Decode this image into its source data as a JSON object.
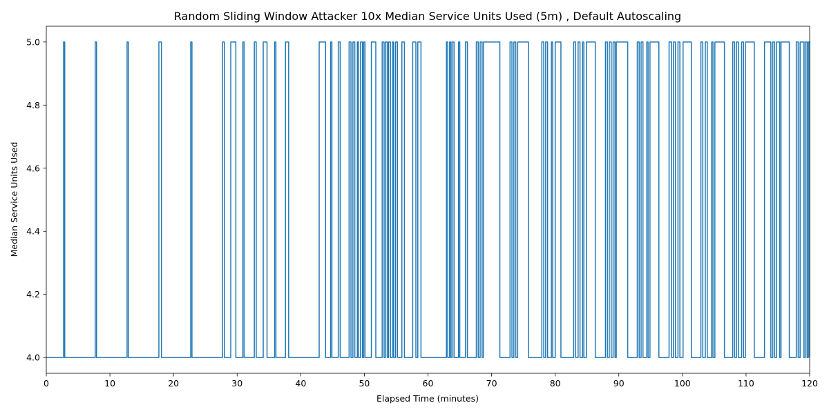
{
  "chart_data": {
    "type": "line",
    "title": "Random Sliding Window Attacker 10x Median Service Units Used (5m) , Default Autoscaling",
    "xlabel": "Elapsed Time (minutes)",
    "ylabel": "Median Service Units Used",
    "xlim": [
      0,
      120
    ],
    "ylim": [
      3.95,
      5.05
    ],
    "x_ticks": [
      0,
      10,
      20,
      30,
      40,
      50,
      60,
      70,
      80,
      90,
      100,
      110,
      120
    ],
    "x_tick_labels": [
      "0",
      "10",
      "20",
      "30",
      "40",
      "50",
      "60",
      "70",
      "80",
      "90",
      "100",
      "110",
      "120"
    ],
    "y_ticks": [
      4.0,
      4.2,
      4.4,
      4.6,
      4.8,
      5.0
    ],
    "y_tick_labels": [
      "4.0",
      "4.2",
      "4.4",
      "4.6",
      "4.8",
      "5.0"
    ],
    "grid": false,
    "legend": "none",
    "series": [
      {
        "color": "#1f77b4",
        "style": "step",
        "baseline": 4.0,
        "peak": 5.0,
        "x_start": 0,
        "x_end": 120,
        "high_intervals": [
          [
            2.7,
            2.9
          ],
          [
            7.7,
            7.9
          ],
          [
            12.7,
            12.9
          ],
          [
            17.7,
            18.1
          ],
          [
            22.7,
            22.9
          ],
          [
            27.7,
            28.0
          ],
          [
            29.0,
            29.8
          ],
          [
            30.9,
            31.1
          ],
          [
            32.7,
            33.0
          ],
          [
            34.1,
            34.7
          ],
          [
            35.9,
            36.1
          ],
          [
            37.6,
            38.1
          ],
          [
            42.9,
            43.9
          ],
          [
            44.7,
            44.9
          ],
          [
            45.9,
            46.2
          ],
          [
            47.6,
            47.9
          ],
          [
            48.2,
            48.5
          ],
          [
            48.9,
            49.1
          ],
          [
            49.4,
            49.7
          ],
          [
            49.9,
            50.1
          ],
          [
            51.1,
            51.8
          ],
          [
            52.8,
            53.1
          ],
          [
            53.3,
            53.6
          ],
          [
            53.8,
            54.1
          ],
          [
            54.4,
            54.6
          ],
          [
            54.9,
            55.2
          ],
          [
            55.9,
            56.3
          ],
          [
            57.6,
            58.1
          ],
          [
            58.4,
            58.9
          ],
          [
            62.9,
            63.1
          ],
          [
            63.4,
            63.6
          ],
          [
            63.8,
            64.1
          ],
          [
            64.8,
            65.0
          ],
          [
            65.9,
            66.2
          ],
          [
            67.6,
            67.9
          ],
          [
            68.2,
            68.5
          ],
          [
            68.7,
            71.3
          ],
          [
            72.9,
            73.2
          ],
          [
            73.5,
            73.8
          ],
          [
            74.1,
            75.8
          ],
          [
            77.9,
            78.2
          ],
          [
            78.5,
            78.8
          ],
          [
            79.4,
            79.6
          ],
          [
            80.0,
            80.9
          ],
          [
            82.9,
            83.2
          ],
          [
            83.6,
            83.9
          ],
          [
            84.3,
            84.5
          ],
          [
            84.9,
            86.3
          ],
          [
            87.9,
            88.2
          ],
          [
            88.5,
            88.8
          ],
          [
            89.1,
            89.4
          ],
          [
            89.6,
            91.4
          ],
          [
            92.9,
            93.2
          ],
          [
            93.5,
            93.8
          ],
          [
            94.4,
            94.6
          ],
          [
            94.9,
            96.3
          ],
          [
            97.9,
            98.3
          ],
          [
            98.6,
            98.9
          ],
          [
            99.3,
            99.6
          ],
          [
            100.1,
            101.4
          ],
          [
            102.9,
            103.2
          ],
          [
            103.6,
            103.9
          ],
          [
            104.6,
            104.8
          ],
          [
            105.1,
            106.6
          ],
          [
            107.9,
            108.2
          ],
          [
            108.5,
            108.8
          ],
          [
            109.3,
            109.6
          ],
          [
            109.9,
            111.3
          ],
          [
            112.9,
            113.9
          ],
          [
            114.2,
            114.5
          ],
          [
            114.8,
            115.3
          ],
          [
            115.5,
            116.8
          ],
          [
            117.9,
            118.2
          ],
          [
            118.5,
            119.1
          ],
          [
            119.3,
            119.6
          ],
          [
            119.8,
            120.0
          ]
        ]
      }
    ]
  }
}
